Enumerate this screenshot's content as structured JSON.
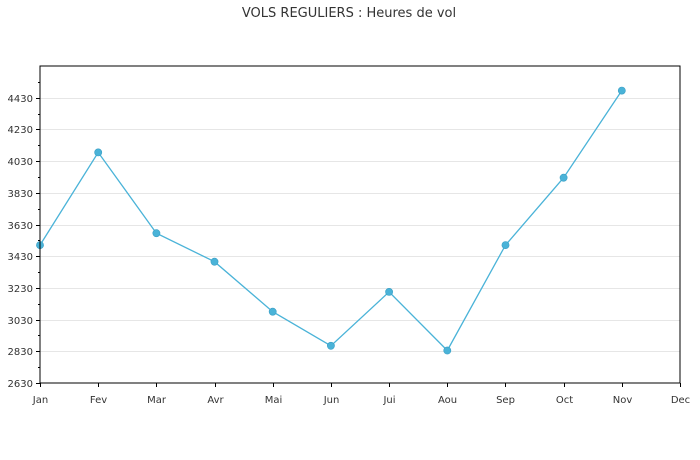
{
  "chart_data": {
    "type": "line",
    "title": "VOLS REGULIERS : Heures de vol",
    "xlabel": "",
    "ylabel": "",
    "categories": [
      "Jan",
      "Fev",
      "Mar",
      "Avr",
      "Mai",
      "Jun",
      "Jui",
      "Aou",
      "Sep",
      "Oct",
      "Nov",
      "Dec"
    ],
    "series": [
      {
        "values": [
          3500,
          4085,
          3575,
          3395,
          3080,
          2865,
          3205,
          2835,
          3500,
          3925,
          4475,
          null
        ],
        "color": "#4ab3d8"
      }
    ],
    "ylim": [
      2630,
      4630
    ],
    "yticks": [
      2630,
      2830,
      3030,
      3230,
      3430,
      3630,
      3830,
      4030,
      4230,
      4430
    ],
    "ytick_labels": [
      "2630",
      "2830",
      "3030",
      "3230",
      "3430",
      "3630",
      "3830",
      "4030",
      "4230",
      "4430"
    ],
    "grid": true,
    "legend": "none"
  }
}
